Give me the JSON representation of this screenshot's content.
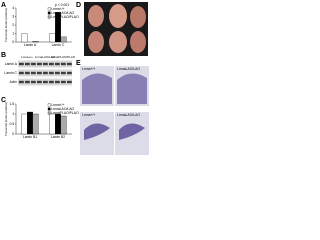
{
  "panel_labels": [
    "A",
    "B",
    "C",
    "D",
    "E"
  ],
  "chart_data": [
    {
      "type": "bar",
      "ylabel": "Transcript levels (relative)",
      "annotation": "p < 0.001",
      "categories": [
        "Lamin A",
        "Lamin C"
      ],
      "series": [
        {
          "name": "Lmna+/+",
          "color": "#ffffff",
          "values": [
            1,
            1
          ]
        },
        {
          "name": "LmnaLAO/LAO",
          "color": "#000000",
          "values": [
            0,
            3.5
          ]
        },
        {
          "name": "LmnaPLAO/PLAO",
          "color": "#aaaaaa",
          "values": [
            0.1,
            0.6
          ]
        }
      ],
      "ylim": [
        0,
        4
      ],
      "yticks": [
        0,
        1,
        2,
        3,
        4
      ]
    },
    {
      "type": "bar",
      "ylabel": "Transcript levels (relative)",
      "categories": [
        "Lamin B1",
        "Lamin B2"
      ],
      "series": [
        {
          "name": "Lmna+/+",
          "color": "#ffffff",
          "values": [
            1,
            1
          ]
        },
        {
          "name": "LmnaLAO/LAO",
          "color": "#000000",
          "values": [
            1.1,
            1
          ]
        },
        {
          "name": "LmnaPLAO/PLAO",
          "color": "#aaaaaa",
          "values": [
            1,
            0.9
          ]
        }
      ],
      "ylim": [
        0,
        1.5
      ],
      "yticks": [
        0,
        0.5,
        1,
        1.5
      ]
    }
  ],
  "blot": {
    "columns": [
      "Lmna+/+",
      "LmnaLAO/LAO",
      "LmnaPLAO/PLAO"
    ],
    "rows": [
      "Lamin A",
      "Lamin C",
      "Actin"
    ]
  },
  "sections": {
    "labels": [
      "Lmna+/+",
      "LmnaLAO/LAO",
      "Lmna+/+",
      "LmnaLAO/LAO"
    ]
  }
}
